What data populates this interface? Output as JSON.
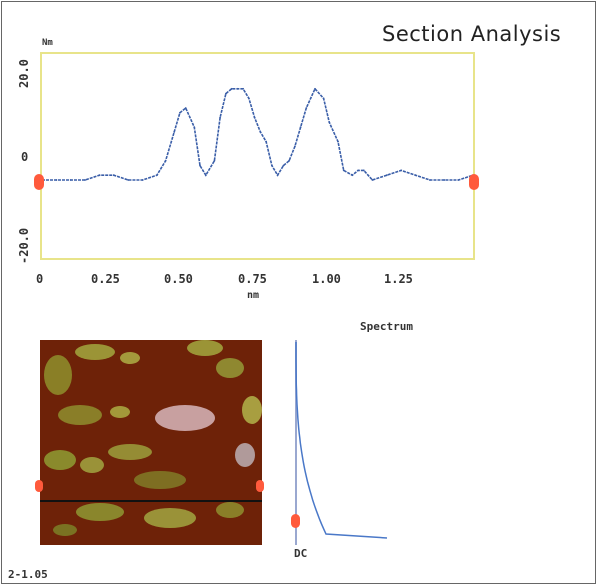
{
  "title": "Section Analysis",
  "profile": {
    "unit_label": "Nm",
    "y_ticks": [
      "20.0",
      "0",
      "-20.0"
    ],
    "x_ticks": [
      "0",
      "0.25",
      "0.50",
      "0.75",
      "1.00",
      "1.25"
    ],
    "x_unit": "nm",
    "line_color": "#3a5ea8",
    "frame_color": "#e8e48a",
    "cursor_color": "#ff5a3c"
  },
  "image": {
    "scale_label": "2-1.05"
  },
  "spectrum": {
    "title": "Spectrum",
    "dc_label": "DC",
    "line_color": "#4a78c8"
  },
  "chart_data": {
    "type": "line",
    "title": "Section Analysis",
    "xlabel": "nm",
    "ylabel": "Nm",
    "xlim": [
      0,
      1.5
    ],
    "ylim": [
      -20,
      20
    ],
    "x": [
      0.0,
      0.05,
      0.1,
      0.15,
      0.2,
      0.25,
      0.3,
      0.35,
      0.4,
      0.43,
      0.46,
      0.48,
      0.5,
      0.53,
      0.55,
      0.57,
      0.6,
      0.62,
      0.64,
      0.66,
      0.68,
      0.7,
      0.72,
      0.74,
      0.76,
      0.78,
      0.8,
      0.82,
      0.84,
      0.86,
      0.88,
      0.9,
      0.92,
      0.95,
      0.98,
      1.0,
      1.03,
      1.05,
      1.08,
      1.1,
      1.12,
      1.15,
      1.2,
      1.25,
      1.3,
      1.35,
      1.4,
      1.45,
      1.5
    ],
    "y": [
      -5,
      -5,
      -5,
      -5,
      -4,
      -4,
      -5,
      -5,
      -4,
      -1,
      5,
      9,
      10,
      6,
      -2,
      -4,
      -1,
      8,
      13,
      14,
      14,
      14,
      12,
      8,
      5,
      3,
      -2,
      -4,
      -2,
      -1,
      2,
      6,
      10,
      14,
      12,
      7,
      3,
      -3,
      -4,
      -3,
      -3,
      -5,
      -4,
      -3,
      -4,
      -5,
      -5,
      -5,
      -4
    ]
  }
}
